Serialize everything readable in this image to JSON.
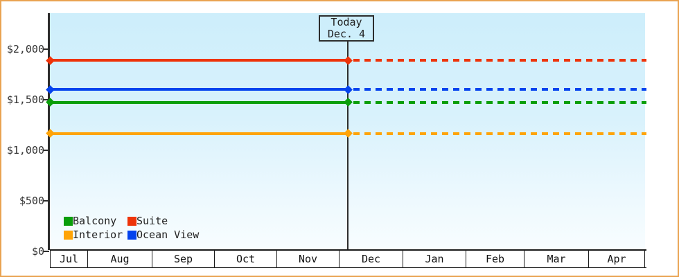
{
  "page": {
    "border_color": "#e9a351",
    "background_color": "#ffffff",
    "plot_gradient_top": "#cdeefb",
    "plot_gradient_bottom": "#f8fdff"
  },
  "today_marker": {
    "line1": "Today",
    "line2": "Dec. 4"
  },
  "legend": {
    "items": [
      {
        "label": "Balcony",
        "color": "#0a9e0a"
      },
      {
        "label": "Suite",
        "color": "#ee3309"
      },
      {
        "label": "Interior",
        "color": "#ffa408"
      },
      {
        "label": "Ocean View",
        "color": "#0443ee"
      }
    ]
  },
  "chart_data": {
    "type": "line",
    "title": "",
    "xlabel": "",
    "ylabel": "",
    "y_axis": {
      "tick_values": [
        2000,
        1500,
        1000,
        500,
        0
      ],
      "tick_labels": [
        "$2,000",
        "$1,500",
        "$1,000",
        "$500",
        "$0"
      ],
      "ylim": [
        0,
        2340
      ],
      "grid": false
    },
    "x_axis": {
      "months": [
        "Jul",
        "Aug",
        "Sep",
        "Oct",
        "Nov",
        "Dec",
        "Jan",
        "Feb",
        "Mar",
        "Apr"
      ],
      "today": "Dec. 4"
    },
    "series": [
      {
        "name": "Suite",
        "color": "#ee3309",
        "value": 1890,
        "past_style": "solid",
        "future_style": "dotted"
      },
      {
        "name": "Ocean View",
        "color": "#0443ee",
        "value": 1600,
        "past_style": "solid",
        "future_style": "dotted"
      },
      {
        "name": "Balcony",
        "color": "#0a9e0a",
        "value": 1475,
        "past_style": "solid",
        "future_style": "dotted"
      },
      {
        "name": "Interior",
        "color": "#ffa408",
        "value": 1165,
        "past_style": "solid",
        "future_style": "dotted"
      }
    ],
    "annotations": [
      "Today",
      "Dec. 4"
    ],
    "legend_position": "bottom-left",
    "notes": "Flat price lines: solid segment before today marker, dotted projection after"
  }
}
